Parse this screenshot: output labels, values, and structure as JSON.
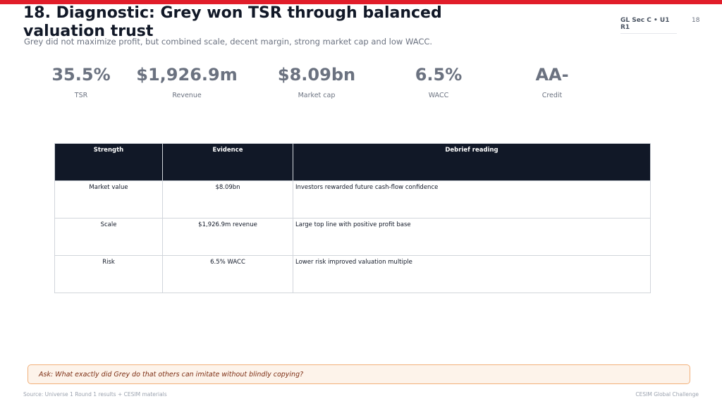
{
  "header": {
    "title": "18. Diagnostic: Grey won TSR through balanced valuation trust",
    "subtitle": "Grey did not maximize profit, but combined scale, decent margin, strong market cap and low WACC.",
    "course_tag": "GL Sec C • U1 R1",
    "page_number": "18"
  },
  "kpis": [
    {
      "value": "35.5%",
      "label": "TSR"
    },
    {
      "value": "$1,926.9m",
      "label": "Revenue"
    },
    {
      "value": "$8.09bn",
      "label": "Market cap"
    },
    {
      "value": "6.5%",
      "label": "WACC"
    },
    {
      "value": "AA-",
      "label": "Credit"
    }
  ],
  "table": {
    "headers": [
      "Strength",
      "Evidence",
      "Debrief reading"
    ],
    "rows": [
      [
        "Market value",
        "$8.09bn",
        "Investors rewarded future cash-flow confidence"
      ],
      [
        "Scale",
        "$1,926.9m revenue",
        "Large top line with positive profit base"
      ],
      [
        "Risk",
        "6.5% WACC",
        "Lower risk improved valuation multiple"
      ]
    ]
  },
  "ask": "Ask: What exactly did Grey do that others can imitate without blindly copying?",
  "footer": {
    "source": "Source: Universe 1 Round 1 results + CESIM materials",
    "brand": "CESIM Global Challenge"
  },
  "colors": {
    "accent": "#e11d2a",
    "table_header_bg": "#111827",
    "ask_border": "#f2b07a",
    "ask_bg": "#fdf3ea"
  }
}
